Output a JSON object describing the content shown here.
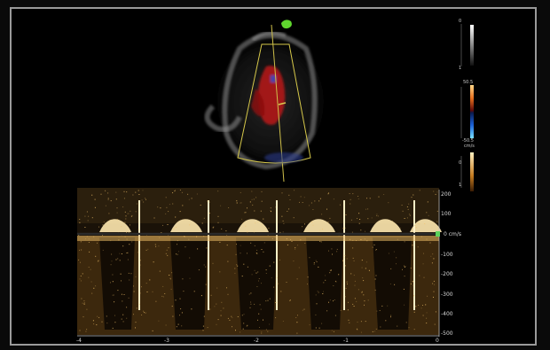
{
  "doppler": {
    "unit": "cm/s",
    "y_ticks": [
      "200",
      "100",
      "0",
      "-100",
      "-200",
      "-300",
      "-400",
      "-500"
    ],
    "x_ticks": [
      "-4",
      "-3",
      "-2",
      "-1",
      "0"
    ]
  },
  "scales": {
    "gray": [
      "0",
      "1"
    ],
    "color_top": "50.5",
    "color_bottom": "-50.5",
    "color_unit": "cm/s",
    "spectral": [
      "0",
      "1"
    ]
  },
  "colors": {
    "doppler_gold": "#f4c36a",
    "baseline_green": "#5bd35b",
    "doppler_red": "#b01818",
    "sector_gray": "#bcbcbc"
  }
}
